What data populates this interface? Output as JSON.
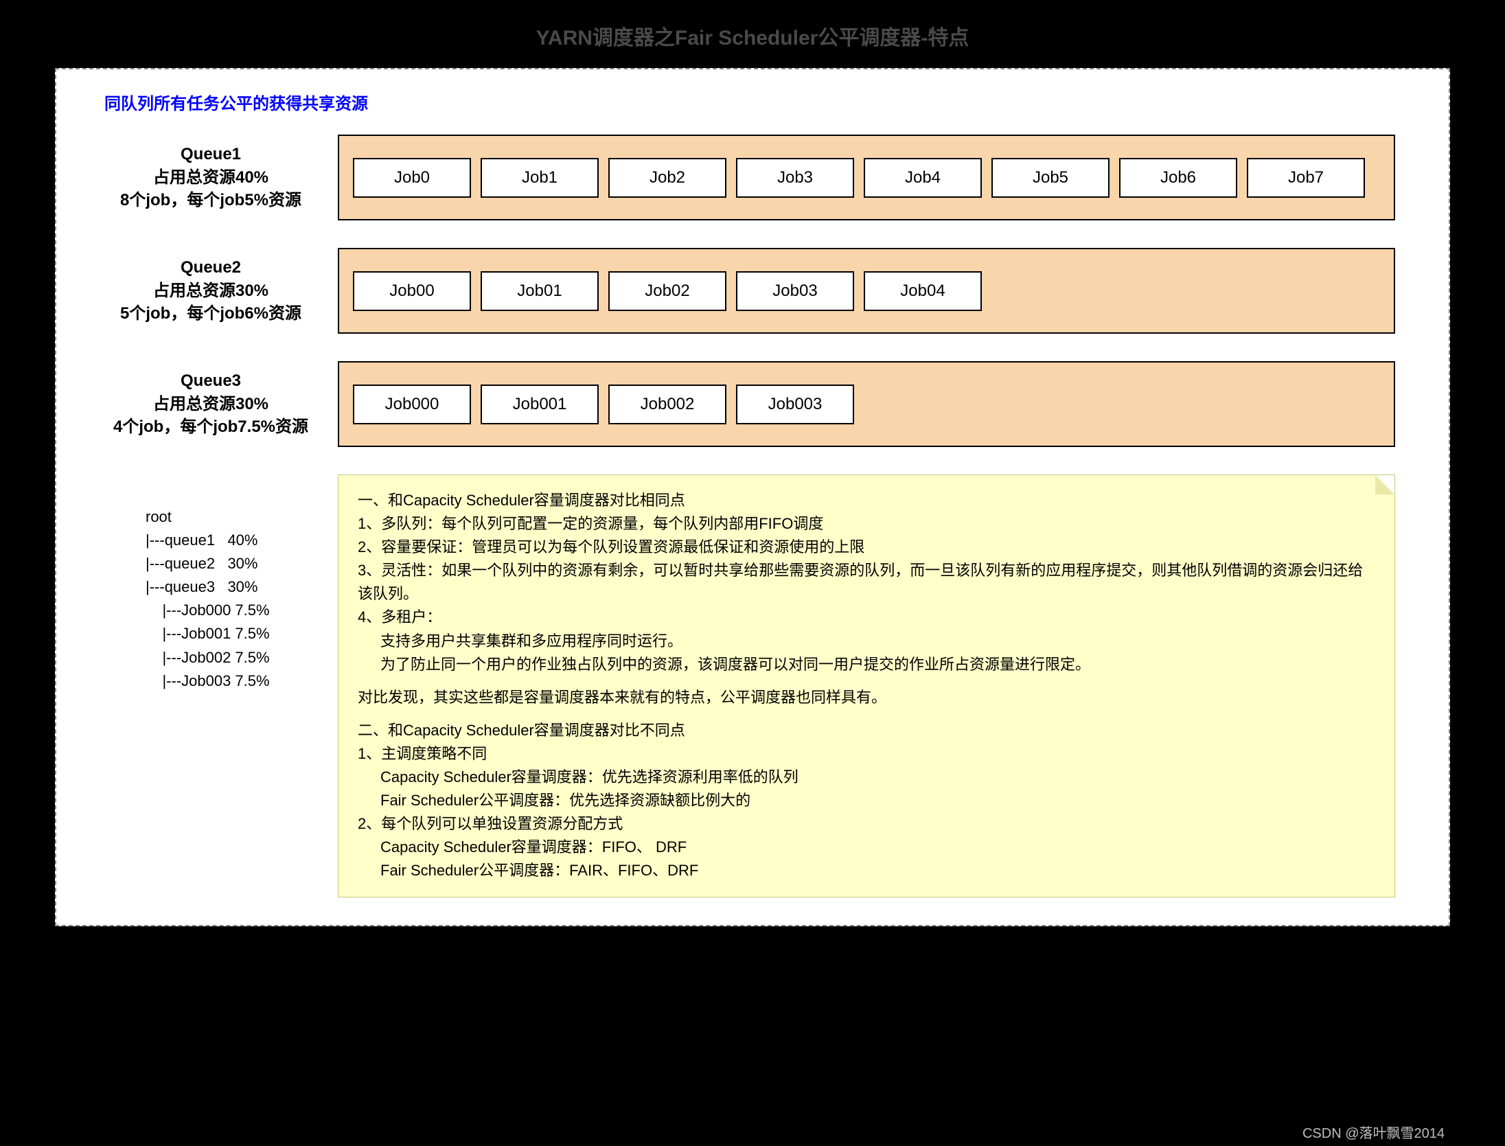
{
  "title": "YARN调度器之Fair Scheduler公平调度器-特点",
  "subtitle": "同队列所有任务公平的获得共享资源",
  "watermark": "CSDN @落叶飘雪2014",
  "colors": {
    "queue_bg": "#f8d5ab",
    "note_bg": "#feffc9",
    "subtitle": "#0000ff",
    "title": "#4a4a4a",
    "border": "#000000",
    "dashed_border": "#888888"
  },
  "queues": [
    {
      "name": "Queue1",
      "resource_line": "占用总资源40%",
      "detail_line": "8个job，每个job5%资源",
      "jobs": [
        "Job0",
        "Job1",
        "Job2",
        "Job3",
        "Job4",
        "Job5",
        "Job6",
        "Job7"
      ]
    },
    {
      "name": "Queue2",
      "resource_line": "占用总资源30%",
      "detail_line": "5个job，每个job6%资源",
      "jobs": [
        "Job00",
        "Job01",
        "Job02",
        "Job03",
        "Job04"
      ]
    },
    {
      "name": "Queue3",
      "resource_line": "占用总资源30%",
      "detail_line": "4个job，每个job7.5%资源",
      "jobs": [
        "Job000",
        "Job001",
        "Job002",
        "Job003"
      ]
    }
  ],
  "tree": {
    "lines": [
      "root",
      "|---queue1   40%",
      "|---queue2   30%",
      "|---queue3   30%",
      "    |---Job000 7.5%",
      "    |---Job001 7.5%",
      "    |---Job002 7.5%",
      "    |---Job003 7.5%"
    ]
  },
  "notes": {
    "lines": [
      {
        "t": "一、和Capacity Scheduler容量调度器对比相同点",
        "indent": 0
      },
      {
        "t": "1、多队列：每个队列可配置一定的资源量，每个队列内部用FIFO调度",
        "indent": 0
      },
      {
        "t": "2、容量要保证：管理员可以为每个队列设置资源最低保证和资源使用的上限",
        "indent": 0
      },
      {
        "t": "3、灵活性：如果一个队列中的资源有剩余，可以暂时共享给那些需要资源的队列，而一旦该队列有新的应用程序提交，则其他队列借调的资源会归还给该队列。",
        "indent": 0
      },
      {
        "t": "4、多租户：",
        "indent": 0
      },
      {
        "t": "支持多用户共享集群和多应用程序同时运行。",
        "indent": 1
      },
      {
        "t": "为了防止同一个用户的作业独占队列中的资源，该调度器可以对同一用户提交的作业所占资源量进行限定。",
        "indent": 1
      },
      {
        "t": "",
        "indent": 0,
        "gap": true
      },
      {
        "t": "对比发现，其实这些都是容量调度器本来就有的特点，公平调度器也同样具有。",
        "indent": 0
      },
      {
        "t": "",
        "indent": 0,
        "gap": true
      },
      {
        "t": "二、和Capacity Scheduler容量调度器对比不同点",
        "indent": 0
      },
      {
        "t": "1、主调度策略不同",
        "indent": 0
      },
      {
        "t": "Capacity Scheduler容量调度器：优先选择资源利用率低的队列",
        "indent": 1
      },
      {
        "t": "Fair Scheduler公平调度器：优先选择资源缺额比例大的",
        "indent": 1
      },
      {
        "t": "2、每个队列可以单独设置资源分配方式",
        "indent": 0
      },
      {
        "t": "Capacity Scheduler容量调度器：FIFO、 DRF",
        "indent": 1
      },
      {
        "t": "Fair Scheduler公平调度器：FAIR、FIFO、DRF",
        "indent": 1
      }
    ]
  }
}
